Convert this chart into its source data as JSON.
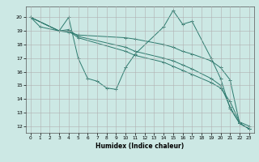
{
  "xlabel": "Humidex (Indice chaleur)",
  "bg_color": "#cce8e4",
  "line_color": "#2d7a6e",
  "grid_color": "#b0b0b0",
  "xlim": [
    -0.5,
    23.5
  ],
  "ylim": [
    11.5,
    20.8
  ],
  "yticks": [
    12,
    13,
    14,
    15,
    16,
    17,
    18,
    19,
    20
  ],
  "xticks": [
    0,
    1,
    2,
    3,
    4,
    5,
    6,
    7,
    8,
    9,
    10,
    11,
    12,
    13,
    14,
    15,
    16,
    17,
    18,
    19,
    20,
    21,
    22,
    23
  ],
  "lines": [
    {
      "x": [
        0,
        1,
        3,
        4,
        5,
        6,
        7,
        8,
        9,
        10,
        11,
        14,
        15,
        16,
        17,
        19,
        20,
        21,
        22,
        23
      ],
      "y": [
        20,
        19.3,
        19,
        20,
        17,
        15.5,
        15.3,
        14.8,
        14.7,
        16.3,
        17.3,
        19.3,
        20.5,
        19.5,
        19.7,
        17,
        15.5,
        13.3,
        12.2,
        11.8
      ]
    },
    {
      "x": [
        0,
        3,
        4,
        5,
        10,
        11,
        14,
        15,
        16,
        17,
        19,
        20,
        21,
        22,
        23
      ],
      "y": [
        20,
        19,
        18.9,
        18.7,
        18.5,
        18.4,
        18.0,
        17.8,
        17.5,
        17.3,
        16.8,
        16.3,
        15.4,
        12.2,
        11.8
      ]
    },
    {
      "x": [
        0,
        3,
        4,
        5,
        10,
        11,
        14,
        15,
        16,
        17,
        19,
        20,
        21,
        22,
        23
      ],
      "y": [
        20,
        19,
        19.1,
        18.6,
        17.8,
        17.5,
        17.0,
        16.8,
        16.5,
        16.2,
        15.5,
        15.0,
        13.4,
        12.2,
        11.8
      ]
    },
    {
      "x": [
        0,
        3,
        4,
        5,
        10,
        11,
        14,
        15,
        16,
        17,
        19,
        20,
        21,
        22,
        23
      ],
      "y": [
        20,
        19,
        19.0,
        18.5,
        17.5,
        17.2,
        16.7,
        16.4,
        16.1,
        15.8,
        15.2,
        14.8,
        13.8,
        12.3,
        12.0
      ]
    }
  ]
}
